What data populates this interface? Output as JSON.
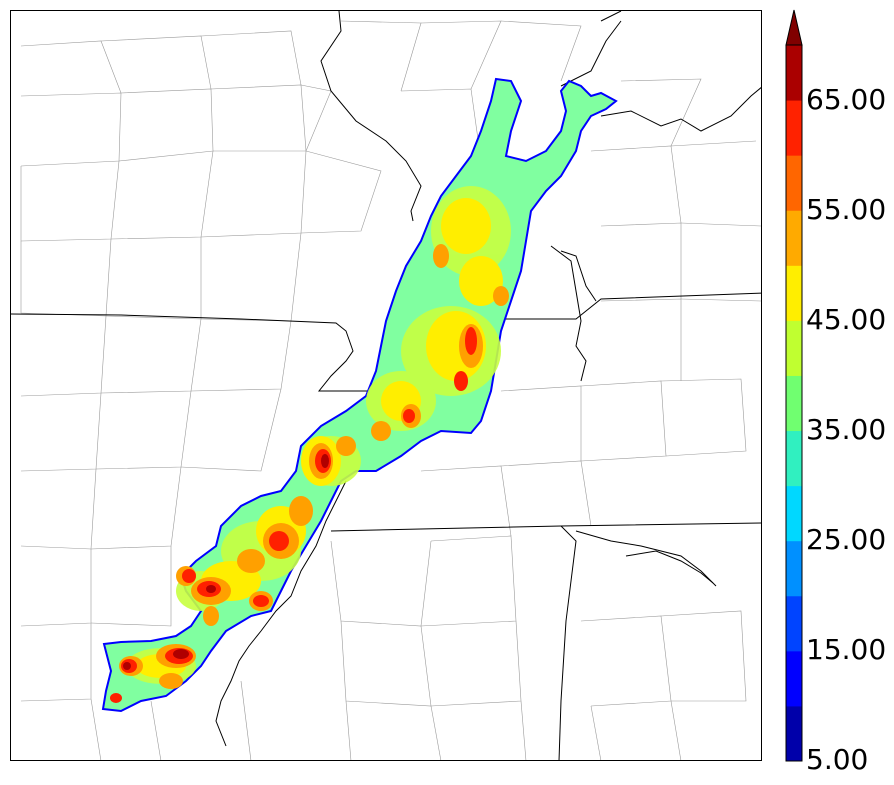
{
  "colorbar": {
    "labels": [
      "65.00",
      "55.00",
      "45.00",
      "35.00",
      "25.00",
      "15.00",
      "5.00"
    ],
    "levels": [
      5,
      10,
      15,
      20,
      25,
      30,
      35,
      40,
      45,
      50,
      55,
      60,
      65,
      70
    ],
    "colors": [
      "#0000aa",
      "#0000ff",
      "#0044ff",
      "#0090ff",
      "#00d8ff",
      "#30f0c0",
      "#70ff70",
      "#c0ff30",
      "#ffee00",
      "#ffaa00",
      "#ff6600",
      "#ff2200",
      "#aa0000"
    ],
    "extend": "max"
  },
  "map": {
    "field_colors": {
      "outline": "#0000ff",
      "base": "#80ffa0",
      "light": "#60f0a0",
      "mid": "#c8ff40",
      "high": "#ffee00",
      "orange": "#ffa000",
      "red": "#ff2000",
      "darkred": "#b00000"
    }
  }
}
